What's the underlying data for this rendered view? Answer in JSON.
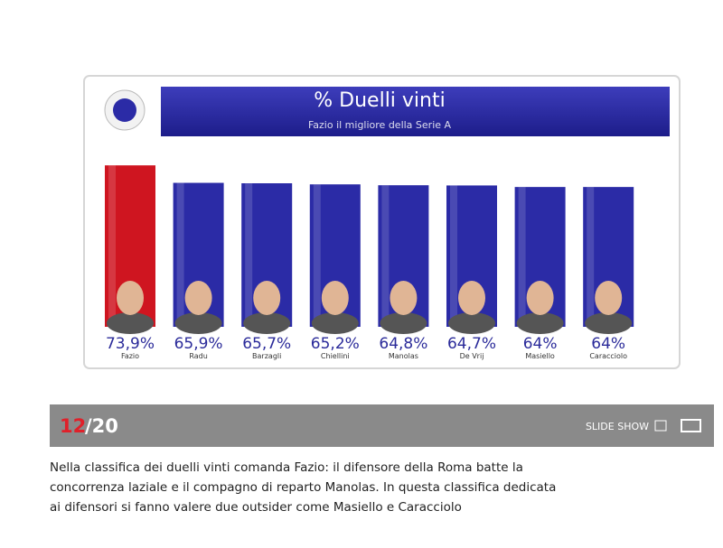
{
  "chart_data": {
    "type": "bar",
    "title": "% Duelli vinti",
    "subtitle": "Fazio il migliore della Serie A",
    "categories": [
      "Fazio",
      "Radu",
      "Barzagli",
      "Chiellini",
      "Manolas",
      "De Vrij",
      "Masiello",
      "Caracciolo"
    ],
    "values": [
      73.9,
      65.9,
      65.7,
      65.2,
      64.8,
      64.7,
      64,
      64
    ],
    "value_labels": [
      "73,9%",
      "65,9%",
      "65,7%",
      "65,2%",
      "64,8%",
      "64,7%",
      "64%",
      "64%"
    ],
    "colors": [
      "#cf1520",
      "#2b2ba6",
      "#2b2ba6",
      "#2b2ba6",
      "#2b2ba6",
      "#2b2ba6",
      "#2b2ba6",
      "#2b2ba6"
    ]
  },
  "slideshow": {
    "current": "12",
    "total": "/20",
    "mode": "SLIDE SHOW"
  },
  "caption": {
    "lines": [
      "Nella classifica dei duelli vinti comanda Fazio: il difensore della Roma batte la",
      "concorrenza laziale e il compagno di reparto Manolas. In questa classifica dedicata",
      "ai difensori si fanno valere due outsider come Masiello e Caracciolo"
    ]
  }
}
